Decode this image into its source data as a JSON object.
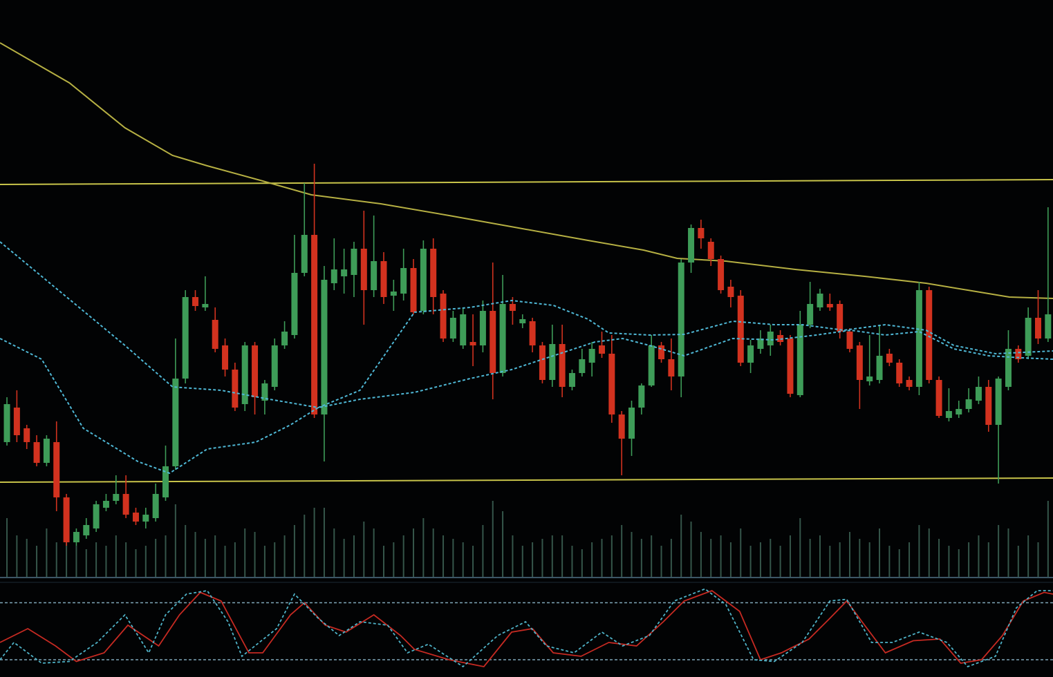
{
  "chart_data": {
    "type": "candlestick",
    "xlim": [
      -0.7,
      105.5
    ],
    "ylim": [
      0,
      800
    ],
    "colors": {
      "up": "#3e9c58",
      "down": "#d2321f"
    },
    "candles": [
      [
        160,
        225,
        155,
        215
      ],
      [
        210,
        235,
        160,
        170
      ],
      [
        180,
        185,
        150,
        160
      ],
      [
        160,
        170,
        125,
        130
      ],
      [
        130,
        170,
        125,
        165
      ],
      [
        160,
        190,
        60,
        80
      ],
      [
        80,
        85,
        10,
        15
      ],
      [
        15,
        35,
        10,
        30
      ],
      [
        25,
        50,
        20,
        40
      ],
      [
        35,
        75,
        30,
        70
      ],
      [
        65,
        85,
        60,
        75
      ],
      [
        75,
        112,
        70,
        85
      ],
      [
        85,
        112,
        50,
        55
      ],
      [
        58,
        65,
        40,
        45
      ],
      [
        45,
        65,
        35,
        55
      ],
      [
        50,
        100,
        45,
        85
      ],
      [
        80,
        155,
        75,
        125
      ],
      [
        125,
        310,
        120,
        252
      ],
      [
        252,
        380,
        245,
        370
      ],
      [
        370,
        380,
        350,
        357
      ],
      [
        355,
        400,
        350,
        360
      ],
      [
        337,
        355,
        290,
        295
      ],
      [
        300,
        310,
        255,
        265
      ],
      [
        265,
        275,
        205,
        210
      ],
      [
        215,
        305,
        205,
        300
      ],
      [
        300,
        305,
        200,
        225
      ],
      [
        220,
        250,
        200,
        245
      ],
      [
        240,
        310,
        235,
        300
      ],
      [
        300,
        335,
        295,
        320
      ],
      [
        315,
        460,
        310,
        405
      ],
      [
        405,
        535,
        400,
        460
      ],
      [
        460,
        563,
        195,
        200
      ],
      [
        200,
        415,
        132,
        395
      ],
      [
        390,
        455,
        380,
        410
      ],
      [
        400,
        440,
        375,
        410
      ],
      [
        402,
        450,
        370,
        440
      ],
      [
        440,
        495,
        330,
        380
      ],
      [
        380,
        488,
        370,
        422
      ],
      [
        422,
        435,
        360,
        370
      ],
      [
        372,
        395,
        350,
        378
      ],
      [
        375,
        440,
        365,
        412
      ],
      [
        412,
        425,
        345,
        348
      ],
      [
        350,
        452,
        345,
        440
      ],
      [
        440,
        455,
        345,
        370
      ],
      [
        375,
        380,
        305,
        310
      ],
      [
        310,
        350,
        305,
        340
      ],
      [
        300,
        355,
        295,
        345
      ],
      [
        305,
        345,
        270,
        300
      ],
      [
        300,
        365,
        290,
        350
      ],
      [
        350,
        420,
        222,
        260
      ],
      [
        260,
        402,
        255,
        360
      ],
      [
        360,
        370,
        330,
        350
      ],
      [
        332,
        345,
        325,
        338
      ],
      [
        335,
        340,
        290,
        300
      ],
      [
        300,
        305,
        245,
        250
      ],
      [
        250,
        330,
        240,
        302
      ],
      [
        302,
        330,
        225,
        240
      ],
      [
        240,
        265,
        235,
        260
      ],
      [
        260,
        295,
        255,
        280
      ],
      [
        275,
        305,
        255,
        295
      ],
      [
        300,
        320,
        282,
        288
      ],
      [
        288,
        315,
        188,
        200
      ],
      [
        200,
        205,
        112,
        165
      ],
      [
        165,
        220,
        140,
        210
      ],
      [
        210,
        245,
        200,
        242
      ],
      [
        242,
        315,
        240,
        300
      ],
      [
        300,
        305,
        275,
        280
      ],
      [
        280,
        310,
        235,
        255
      ],
      [
        255,
        425,
        225,
        420
      ],
      [
        420,
        475,
        405,
        470
      ],
      [
        470,
        482,
        440,
        455
      ],
      [
        450,
        455,
        415,
        425
      ],
      [
        425,
        430,
        375,
        380
      ],
      [
        385,
        395,
        355,
        370
      ],
      [
        372,
        380,
        270,
        275
      ],
      [
        275,
        308,
        260,
        300
      ],
      [
        295,
        322,
        288,
        310
      ],
      [
        300,
        330,
        285,
        320
      ],
      [
        315,
        322,
        300,
        305
      ],
      [
        310,
        315,
        225,
        230
      ],
      [
        228,
        350,
        225,
        330
      ],
      [
        330,
        392,
        325,
        360
      ],
      [
        355,
        382,
        350,
        375
      ],
      [
        360,
        375,
        350,
        355
      ],
      [
        360,
        365,
        310,
        320
      ],
      [
        320,
        325,
        290,
        295
      ],
      [
        300,
        305,
        208,
        250
      ],
      [
        248,
        315,
        242,
        255
      ],
      [
        250,
        330,
        245,
        285
      ],
      [
        288,
        295,
        270,
        275
      ],
      [
        275,
        280,
        240,
        245
      ],
      [
        250,
        255,
        235,
        240
      ],
      [
        240,
        392,
        228,
        380
      ],
      [
        380,
        385,
        245,
        250
      ],
      [
        250,
        255,
        195,
        198
      ],
      [
        195,
        238,
        190,
        205
      ],
      [
        200,
        220,
        195,
        208
      ],
      [
        208,
        238,
        203,
        222
      ],
      [
        220,
        255,
        215,
        240
      ],
      [
        240,
        250,
        175,
        185
      ],
      [
        185,
        255,
        100,
        252
      ],
      [
        240,
        322,
        235,
        295
      ],
      [
        295,
        300,
        275,
        280
      ],
      [
        285,
        355,
        280,
        340
      ],
      [
        340,
        380,
        302,
        310
      ],
      [
        310,
        500,
        305,
        345
      ]
    ],
    "levels": [
      {
        "color": "#c8c44a",
        "values": [
          533,
          540
        ]
      },
      {
        "color": "#c8c44a",
        "values": [
          102,
          108
        ]
      }
    ],
    "overlays": [
      {
        "color": "#b6b043",
        "dash": false,
        "x": [
          -0.7,
          6.3,
          11.9,
          16.7,
          20.2,
          25.8,
          30.7,
          37.7,
          44.6,
          51.6,
          58.6,
          64.2,
          67.6,
          72.5,
          79.5,
          86.5,
          92.7,
          96.9,
          101.1,
          105.5
        ],
        "values": [
          738,
          680,
          615,
          575,
          560,
          538,
          518,
          505,
          488,
          470,
          452,
          438,
          426,
          422,
          410,
          400,
          390,
          380,
          370,
          368
        ]
      },
      {
        "color": "#4fb8d6",
        "dash": true,
        "x": [
          -0.7,
          3.5,
          7.7,
          11.9,
          16.7,
          21.6,
          26.5,
          31.4,
          35.6,
          41.1,
          46.7,
          50.9,
          55.1,
          58.6,
          60.7,
          64.8,
          68.3,
          73.2,
          77.4,
          80.2,
          84.4,
          88.6,
          92.7,
          95.5,
          99.7,
          105.5
        ],
        "values": [
          450,
          400,
          350,
          300,
          240,
          235,
          222,
          210,
          235,
          348,
          355,
          365,
          358,
          338,
          318,
          315,
          316,
          335,
          330,
          330,
          322,
          330,
          322,
          300,
          288,
          292
        ]
      },
      {
        "color": "#4fb8d6",
        "dash": true,
        "x": [
          -0.7,
          3.5,
          7.7,
          13.2,
          16.4,
          20.2,
          25.1,
          28.6,
          31.4,
          35.6,
          41.1,
          46.7,
          50.9,
          55.1,
          59.3,
          62.1,
          64.8,
          68.3,
          73.2,
          77.4,
          81.6,
          85.1,
          88.6,
          92.0,
          95.5,
          99.0,
          102.5,
          105.5
        ],
        "values": [
          310,
          280,
          180,
          132,
          115,
          150,
          160,
          185,
          210,
          222,
          232,
          252,
          265,
          285,
          305,
          310,
          300,
          285,
          310,
          308,
          315,
          322,
          315,
          320,
          295,
          285,
          282,
          280
        ]
      }
    ],
    "volume": {
      "color": "#35564a",
      "ylim": [
        0,
        140
      ],
      "values": [
        85,
        60,
        55,
        45,
        70,
        50,
        60,
        45,
        40,
        50,
        45,
        60,
        50,
        40,
        45,
        55,
        60,
        105,
        75,
        65,
        55,
        60,
        45,
        50,
        70,
        65,
        45,
        50,
        60,
        75,
        90,
        100,
        100,
        70,
        55,
        60,
        80,
        70,
        45,
        50,
        60,
        70,
        85,
        70,
        60,
        55,
        50,
        45,
        75,
        110,
        95,
        60,
        45,
        50,
        55,
        60,
        60,
        45,
        40,
        50,
        55,
        60,
        75,
        65,
        55,
        60,
        45,
        55,
        90,
        80,
        65,
        55,
        60,
        50,
        70,
        45,
        50,
        55,
        45,
        60,
        85,
        55,
        60,
        45,
        50,
        65,
        55,
        50,
        70,
        45,
        40,
        50,
        75,
        70,
        55,
        45,
        40,
        50,
        60,
        50,
        75,
        70,
        45,
        60,
        50,
        110
      ]
    },
    "oscillator": {
      "ylim": [
        0,
        100
      ],
      "levels": [
        82,
        16
      ],
      "level_color": "#7fa6b8",
      "series": [
        {
          "color": "#c62a22",
          "dash": false,
          "x": [
            -0.7,
            2.1,
            4.9,
            7.0,
            9.8,
            12.2,
            15.3,
            17.4,
            19.5,
            21.6,
            24.4,
            25.8,
            28.6,
            30.0,
            32.1,
            34.2,
            37.0,
            39.7,
            41.1,
            44.6,
            48.1,
            50.9,
            53.0,
            55.1,
            57.9,
            60.7,
            63.5,
            66.2,
            68.3,
            71.1,
            73.9,
            76.0,
            78.1,
            80.9,
            83.0,
            84.7,
            86.5,
            88.6,
            91.4,
            94.1,
            96.2,
            98.3,
            100.4,
            102.5,
            104.6,
            105.5
          ],
          "values": [
            36,
            52,
            32,
            14,
            24,
            56,
            32,
            68,
            94,
            84,
            24,
            24,
            68,
            82,
            56,
            48,
            68,
            44,
            28,
            16,
            8,
            48,
            52,
            24,
            20,
            36,
            32,
            60,
            84,
            96,
            72,
            16,
            24,
            40,
            64,
            84,
            56,
            24,
            38,
            40,
            12,
            16,
            44,
            84,
            94,
            92
          ]
        },
        {
          "color": "#4fb3c8",
          "dash": true,
          "x": [
            -0.7,
            0.7,
            3.5,
            6.3,
            9.1,
            11.9,
            14.3,
            16.0,
            18.1,
            20.2,
            22.3,
            23.7,
            27.2,
            29.0,
            31.4,
            33.5,
            35.6,
            38.4,
            40.4,
            42.5,
            46.0,
            49.5,
            52.3,
            54.4,
            57.2,
            60.0,
            62.1,
            64.8,
            67.3,
            70.4,
            72.5,
            75.3,
            77.4,
            80.2,
            83.0,
            84.7,
            87.2,
            89.3,
            92.0,
            94.8,
            96.9,
            99.7,
            101.8,
            103.9,
            105.5
          ],
          "values": [
            16,
            36,
            12,
            14,
            36,
            68,
            24,
            68,
            92,
            96,
            60,
            20,
            52,
            92,
            64,
            44,
            60,
            56,
            24,
            34,
            8,
            44,
            60,
            32,
            24,
            48,
            32,
            44,
            84,
            98,
            80,
            16,
            14,
            36,
            84,
            86,
            36,
            36,
            48,
            36,
            8,
            20,
            76,
            96,
            96
          ]
        }
      ]
    }
  }
}
